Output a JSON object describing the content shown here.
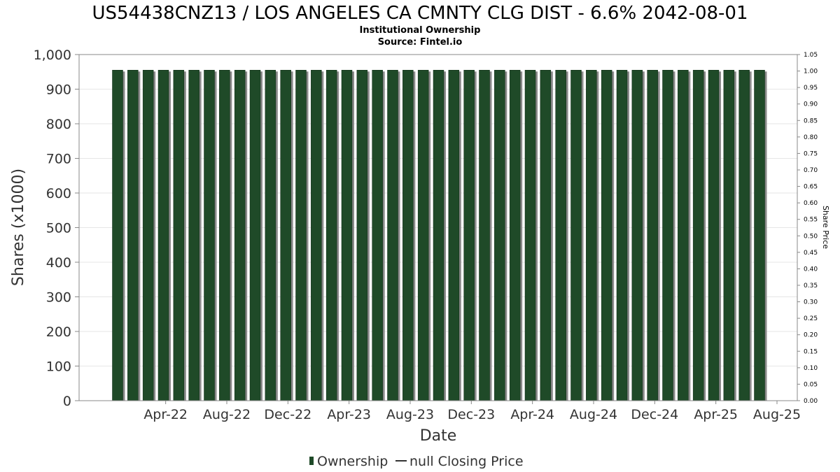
{
  "chart_data": {
    "type": "bar",
    "title": "US54438CNZ13 / LOS ANGELES CA CMNTY CLG DIST - 6.6% 2042-08-01",
    "subtitle_lines": [
      "Institutional Ownership",
      "Source: Fintel.io"
    ],
    "xlabel": "Date",
    "ylabel": "Shares (x1000)",
    "y2label": "Share Price",
    "ylim": [
      0,
      1000
    ],
    "y2lim": [
      0,
      1.05
    ],
    "yticks": [
      "0",
      "100",
      "200",
      "300",
      "400",
      "500",
      "600",
      "700",
      "800",
      "900",
      "1,000"
    ],
    "y2ticks": [
      "0.00",
      "0.05",
      "0.10",
      "0.15",
      "0.20",
      "0.25",
      "0.30",
      "0.35",
      "0.40",
      "0.45",
      "0.50",
      "0.55",
      "0.60",
      "0.65",
      "0.70",
      "0.75",
      "0.80",
      "0.85",
      "0.90",
      "0.95",
      "1.00",
      "1.05"
    ],
    "xticks": [
      "Apr-22",
      "Aug-22",
      "Dec-22",
      "Apr-23",
      "Aug-23",
      "Dec-23",
      "Apr-24",
      "Aug-24",
      "Dec-24",
      "Apr-25",
      "Aug-25"
    ],
    "x_start": "2022-02",
    "x_end": "2025-09",
    "grid": true,
    "legend_position": "bottom-center",
    "bar_color": "#1f4a28",
    "series": [
      {
        "name": "Ownership",
        "x": [
          "2022-02",
          "2022-03",
          "2022-04",
          "2022-05",
          "2022-06",
          "2022-07",
          "2022-08",
          "2022-09",
          "2022-10",
          "2022-11",
          "2022-12",
          "2023-01",
          "2023-02",
          "2023-03",
          "2023-04",
          "2023-05",
          "2023-06",
          "2023-07",
          "2023-08",
          "2023-09",
          "2023-10",
          "2023-11",
          "2023-12",
          "2024-01",
          "2024-02",
          "2024-03",
          "2024-04",
          "2024-05",
          "2024-06",
          "2024-07",
          "2024-08",
          "2024-09",
          "2024-10",
          "2024-11",
          "2024-12",
          "2025-01",
          "2025-02",
          "2025-03",
          "2025-04",
          "2025-05",
          "2025-06",
          "2025-07",
          "2025-08"
        ],
        "values": [
          955,
          955,
          955,
          955,
          955,
          955,
          955,
          955,
          955,
          955,
          955,
          955,
          955,
          955,
          955,
          955,
          955,
          955,
          955,
          955,
          955,
          955,
          955,
          955,
          955,
          955,
          955,
          955,
          955,
          955,
          955,
          955,
          955,
          955,
          955,
          955,
          955,
          955,
          955,
          955,
          955,
          955,
          955
        ]
      },
      {
        "name": "null Closing Price",
        "x": [],
        "values": []
      }
    ]
  }
}
